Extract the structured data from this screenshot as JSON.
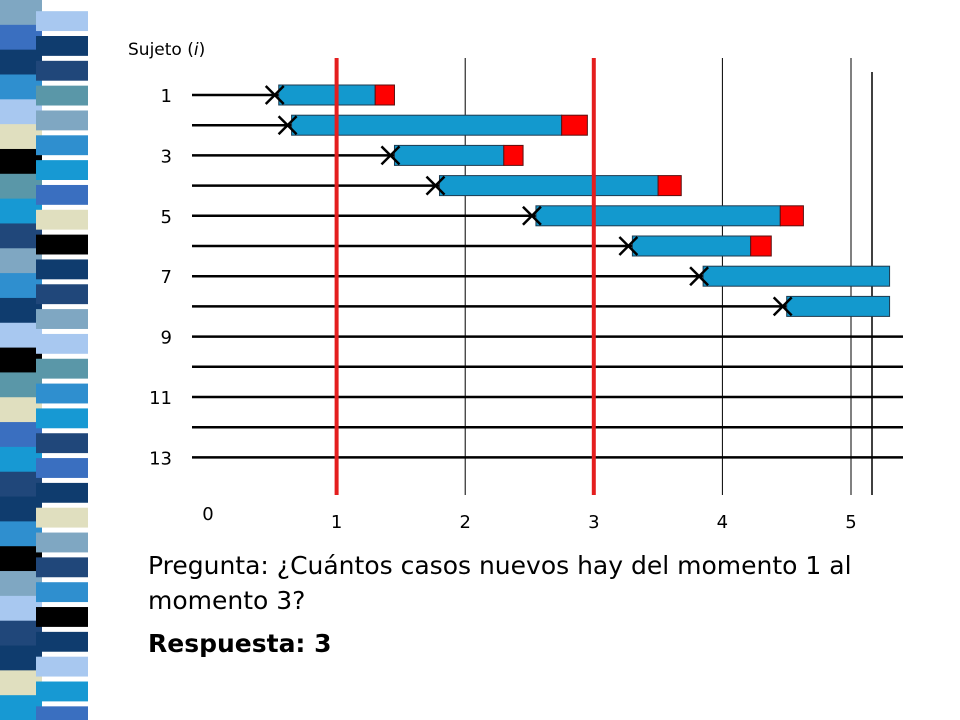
{
  "slide": {
    "y_axis_title": "Sujeto (i)",
    "y_axis_title_main": "Sujeto (",
    "y_axis_title_var": "i",
    "y_axis_title_close": ")",
    "question": "Pregunta: ¿Cuántos casos nuevos hay del momento 1 al momento 3?",
    "answer": "Respuesta: 3"
  },
  "colors": {
    "bar_fill": "#1399CE",
    "event_box": "#FF0000",
    "reference_line": "#E41E1E",
    "axis": "#000000",
    "stripe_palette": [
      "#7FA7C2",
      "#3A6FC0",
      "#0F3C6E",
      "#2F8FCF",
      "#A8C8F0",
      "#E0DFBF",
      "#000000",
      "#5A97A8",
      "#1799D3",
      "#20477A"
    ]
  },
  "chart_data": {
    "type": "timeline",
    "x_ticks": [
      "0",
      "1",
      "2",
      "3",
      "4",
      "5"
    ],
    "x_range": [
      0,
      5.3
    ],
    "subject_labels": [
      "1",
      "3",
      "5",
      "7",
      "9",
      "11",
      "13"
    ],
    "subjects_count": 13,
    "reference_lines_at": [
      1,
      3
    ],
    "subjects": [
      {
        "subject": 1,
        "entry": 0.55,
        "onset": 1.3,
        "event_end": 1.45,
        "has_event": true
      },
      {
        "subject": 2,
        "entry": 0.65,
        "onset": 2.75,
        "event_end": 2.95,
        "has_event": true
      },
      {
        "subject": 3,
        "entry": 1.45,
        "onset": 2.3,
        "event_end": 2.45,
        "has_event": true
      },
      {
        "subject": 4,
        "entry": 1.8,
        "onset": 3.5,
        "event_end": 3.68,
        "has_event": true
      },
      {
        "subject": 5,
        "entry": 2.55,
        "onset": 4.45,
        "event_end": 4.63,
        "has_event": true
      },
      {
        "subject": 6,
        "entry": 3.3,
        "onset": 4.22,
        "event_end": 4.38,
        "has_event": true
      },
      {
        "subject": 7,
        "entry": 3.85,
        "onset": 5.3,
        "has_event": false
      },
      {
        "subject": 8,
        "entry": 4.5,
        "onset": 5.3,
        "has_event": false
      },
      {
        "subject": 9,
        "has_event": false
      },
      {
        "subject": 10,
        "has_event": false
      },
      {
        "subject": 11,
        "has_event": false
      },
      {
        "subject": 12,
        "has_event": false
      },
      {
        "subject": 13,
        "has_event": false
      }
    ]
  }
}
